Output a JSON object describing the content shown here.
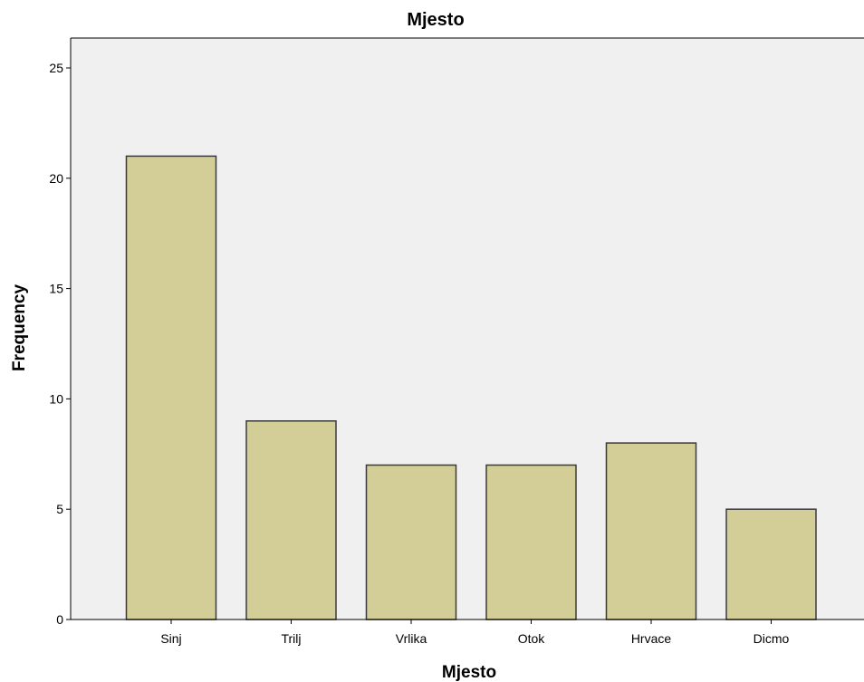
{
  "chart_data": {
    "type": "bar",
    "title": "Mjesto",
    "xlabel": "Mjesto",
    "ylabel": "Frequency",
    "categories": [
      "Sinj",
      "Trilj",
      "Vrlika",
      "Otok",
      "Hrvace",
      "Dicmo"
    ],
    "values": [
      21,
      9,
      7,
      7,
      8,
      5
    ],
    "ylim": [
      0,
      25
    ],
    "yticks": [
      0,
      5,
      10,
      15,
      20,
      25
    ],
    "grid": false,
    "legend": "none",
    "colors": {
      "plot_background": "#f0f0f0",
      "bar_fill": "#d3ce97",
      "bar_stroke": "#3a3a3a",
      "axis": "#000000"
    }
  }
}
